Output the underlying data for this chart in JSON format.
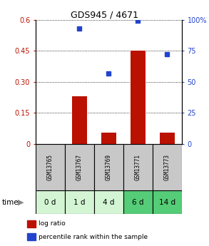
{
  "title": "GDS945 / 4671",
  "samples": [
    "GSM13765",
    "GSM13767",
    "GSM13769",
    "GSM13771",
    "GSM13773"
  ],
  "time_labels": [
    "0 d",
    "1 d",
    "4 d",
    "6 d",
    "14 d"
  ],
  "log_ratio": [
    0.0,
    0.23,
    0.055,
    0.45,
    0.055
  ],
  "percentile_rank": [
    null,
    93,
    57,
    99,
    72
  ],
  "ylim_left": [
    0,
    0.6
  ],
  "ylim_right": [
    0,
    100
  ],
  "yticks_left": [
    0,
    0.15,
    0.3,
    0.45,
    0.6
  ],
  "ytick_labels_left": [
    "0",
    "0.15",
    "0.30",
    "0.45",
    "0.6"
  ],
  "yticks_right": [
    0,
    25,
    50,
    75,
    100
  ],
  "ytick_labels_right": [
    "0",
    "25",
    "50",
    "75",
    "100%"
  ],
  "bar_color": "#bb1100",
  "dot_color": "#2244cc",
  "bar_width": 0.5,
  "sample_bg": "#c8c8c8",
  "time_bg_colors": [
    "#d4f5d4",
    "#d4f5d4",
    "#d4f5d4",
    "#55cc77",
    "#55cc77"
  ],
  "legend_label_bar": "log ratio",
  "legend_label_dot": "percentile rank within the sample",
  "title_fontsize": 9,
  "tick_fontsize": 7,
  "sample_fontsize": 5.5,
  "time_fontsize": 7.5
}
